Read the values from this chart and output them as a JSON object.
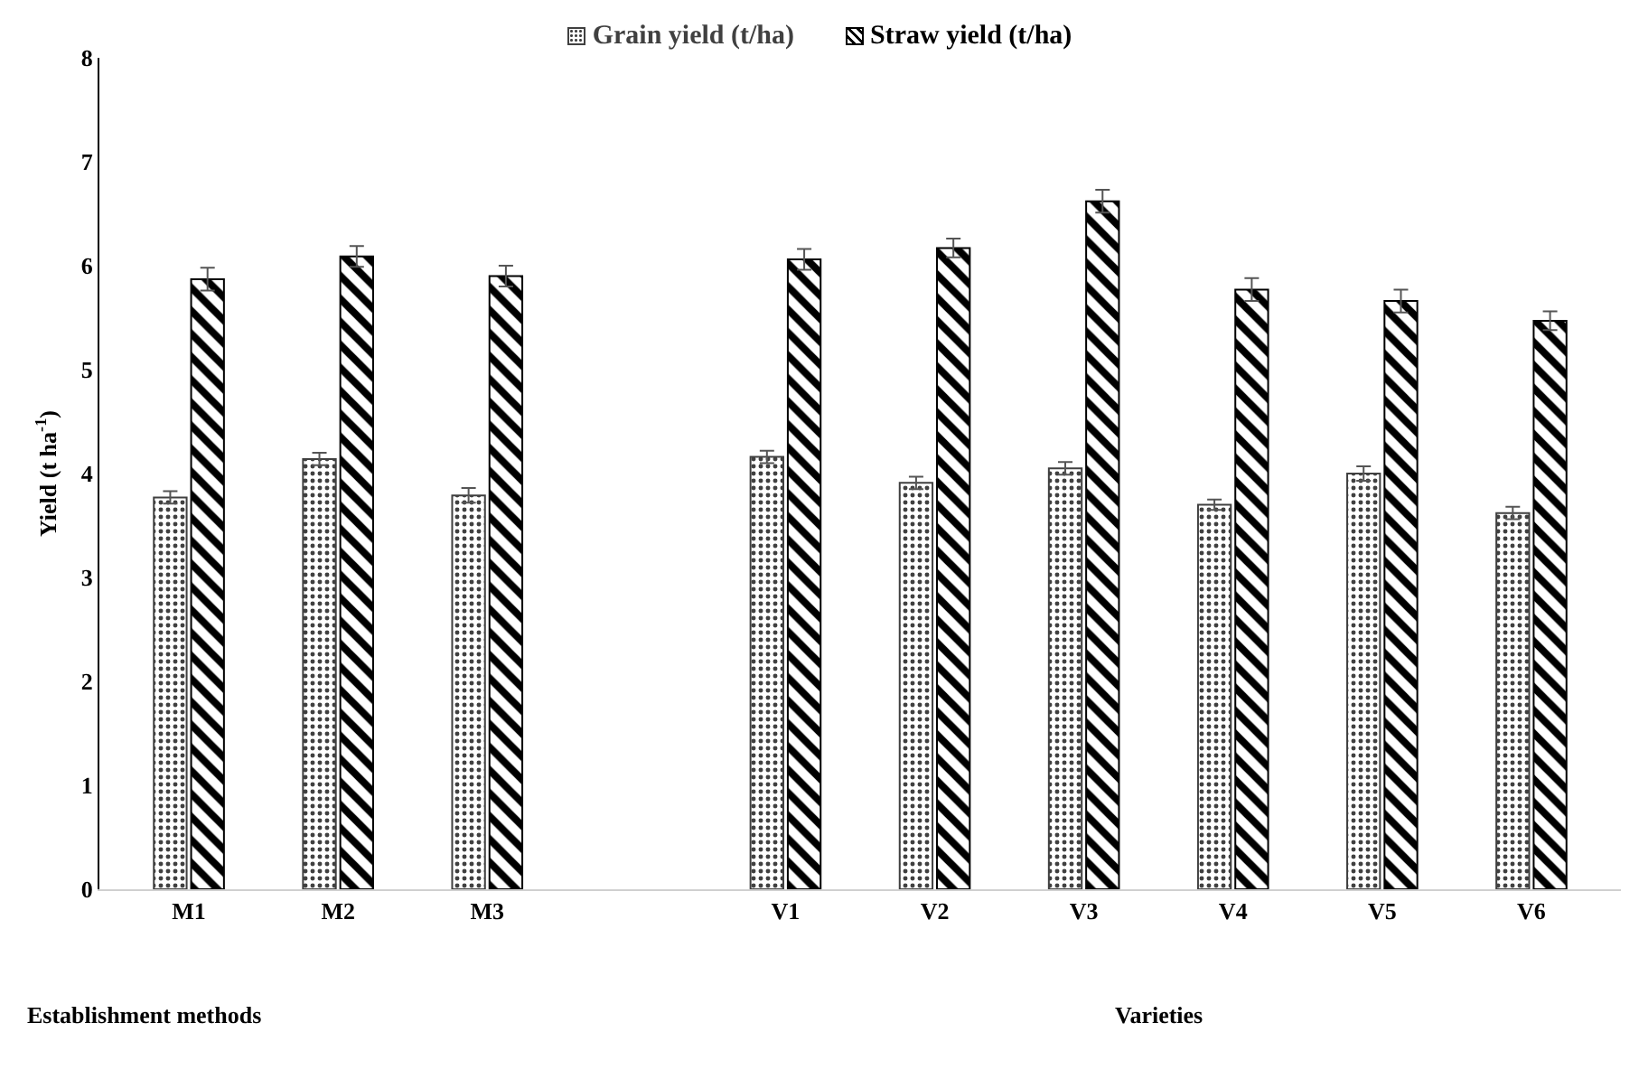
{
  "chart_data": {
    "type": "bar",
    "ylabel": "Yield (t ha$^{-1}$)",
    "categories": [
      "M1",
      "M2",
      "M3",
      null,
      "V1",
      "V2",
      "V3",
      "V4",
      "V5",
      "V6"
    ],
    "series": [
      {
        "name": "Grain yield (t/ha)",
        "color": "#404040",
        "values": [
          3.77,
          4.14,
          3.79,
          null,
          4.16,
          3.91,
          4.05,
          3.7,
          4.0,
          3.62
        ],
        "errors": [
          0.06,
          0.06,
          0.07,
          null,
          0.06,
          0.06,
          0.06,
          0.05,
          0.07,
          0.06
        ]
      },
      {
        "name": "Straw yield (t/ha)",
        "color": "#000000",
        "values": [
          5.87,
          6.09,
          5.9,
          null,
          6.06,
          6.17,
          6.62,
          5.77,
          5.66,
          5.47
        ],
        "errors": [
          0.11,
          0.1,
          0.1,
          null,
          0.1,
          0.09,
          0.11,
          0.11,
          0.11,
          0.09
        ]
      }
    ],
    "ylim": [
      0,
      8
    ],
    "yticks": [
      0,
      1,
      2,
      3,
      4,
      5,
      6,
      7,
      8
    ],
    "grid": false,
    "legend": "top",
    "annotations": [
      "Establishment methods",
      "Varieties"
    ]
  }
}
